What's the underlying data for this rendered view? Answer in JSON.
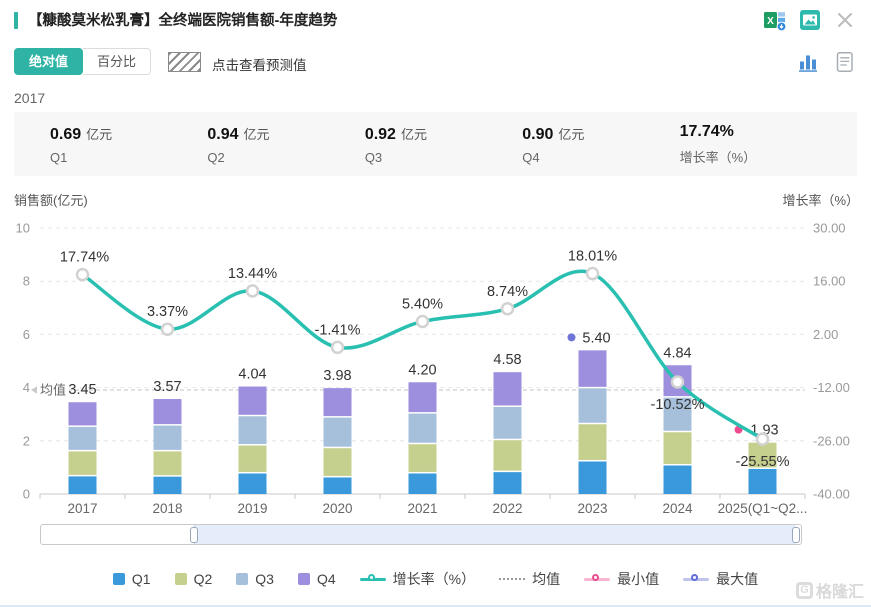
{
  "colors": {
    "accent": "#2eb3a5"
  },
  "header": {
    "title": "【糠酸莫米松乳膏】全终端医院销售额-年度趋势"
  },
  "toolbar": {
    "absolute_label": "绝对值",
    "percent_label": "百分比",
    "forecast_hint": "点击查看预测值"
  },
  "selected_year": "2017",
  "stats": {
    "cards": [
      {
        "value": "0.69",
        "unit": "亿元",
        "label": "Q1"
      },
      {
        "value": "0.94",
        "unit": "亿元",
        "label": "Q2"
      },
      {
        "value": "0.92",
        "unit": "亿元",
        "label": "Q3"
      },
      {
        "value": "0.90",
        "unit": "亿元",
        "label": "Q4"
      },
      {
        "value": "17.74%",
        "unit": "",
        "label": "增长率（%）"
      }
    ]
  },
  "chart_data": {
    "type": "bar+line",
    "title": "全终端医院销售额-年度趋势",
    "left_axis": {
      "title": "销售额(亿元)",
      "ticks": [
        "10",
        "8",
        "6",
        "4",
        "2",
        "0"
      ],
      "range": [
        0,
        10
      ],
      "grid": true
    },
    "right_axis": {
      "title": "增长率（%）",
      "ticks": [
        "30.00",
        "16.00",
        "2.00",
        "-12.00",
        "-26.00",
        "-40.00"
      ],
      "range": [
        -40,
        30
      ]
    },
    "categories": [
      "2017",
      "2018",
      "2019",
      "2020",
      "2021",
      "2022",
      "2023",
      "2024",
      "2025(Q1~Q2..."
    ],
    "series": [
      {
        "name": "Q1",
        "color": "#3a99db",
        "values": [
          0.69,
          0.68,
          0.8,
          0.65,
          0.8,
          0.85,
          1.25,
          1.1,
          0.97
        ]
      },
      {
        "name": "Q2",
        "color": "#c6d08e",
        "values": [
          0.94,
          0.95,
          1.05,
          1.1,
          1.1,
          1.2,
          1.4,
          1.25,
          0.96
        ]
      },
      {
        "name": "Q3",
        "color": "#a6c0db",
        "values": [
          0.92,
          0.97,
          1.1,
          1.15,
          1.15,
          1.25,
          1.35,
          1.3,
          0
        ]
      },
      {
        "name": "Q4",
        "color": "#9e8ede",
        "values": [
          0.9,
          0.97,
          1.09,
          1.08,
          1.15,
          1.28,
          1.4,
          1.19,
          0
        ]
      }
    ],
    "total_labels": [
      "3.45",
      "3.57",
      "4.04",
      "3.98",
      "4.20",
      "4.58",
      "5.40",
      "4.84",
      "1.93"
    ],
    "growth_line": {
      "name": "增长率（%）",
      "color": "#29c0b1",
      "values": [
        17.74,
        3.37,
        13.44,
        -1.41,
        5.4,
        8.74,
        18.01,
        -10.52,
        -25.55
      ],
      "labels": [
        "17.74%",
        "3.37%",
        "13.44%",
        "-1.41%",
        "5.40%",
        "8.74%",
        "18.01%",
        "-10.52%",
        "-25.55%"
      ],
      "label_positions": [
        "above",
        "above",
        "above",
        "above",
        "above",
        "above",
        "above",
        "below",
        "below"
      ]
    },
    "mean_line": {
      "label": "均值",
      "value": 3.91
    },
    "max_point": {
      "index": 6,
      "category": "2023",
      "label": "5.40",
      "color": "#6f74d8"
    },
    "min_point": {
      "index": 8,
      "category": "2025(Q1~Q2...",
      "label": "1.93",
      "color": "#ec4b8f"
    }
  },
  "scrollbar": {
    "start_pct": 20.1,
    "end_pct": 99.4
  },
  "legend": {
    "items": [
      {
        "label": "Q1",
        "type": "square",
        "color": "#3a99db"
      },
      {
        "label": "Q2",
        "type": "square",
        "color": "#c6d08e"
      },
      {
        "label": "Q3",
        "type": "square",
        "color": "#a6c0db"
      },
      {
        "label": "Q4",
        "type": "square",
        "color": "#9e8ede"
      },
      {
        "label": "增长率（%）",
        "type": "line-circle",
        "color": "#29c0b1"
      },
      {
        "label": "均值",
        "type": "dotted",
        "color": "#9a9a9a"
      },
      {
        "label": "最小值",
        "type": "circle-line",
        "color": "#ec4b8f"
      },
      {
        "label": "最大值",
        "type": "circle-line",
        "color": "#5f6cd8"
      }
    ]
  },
  "watermark": "格隆汇"
}
